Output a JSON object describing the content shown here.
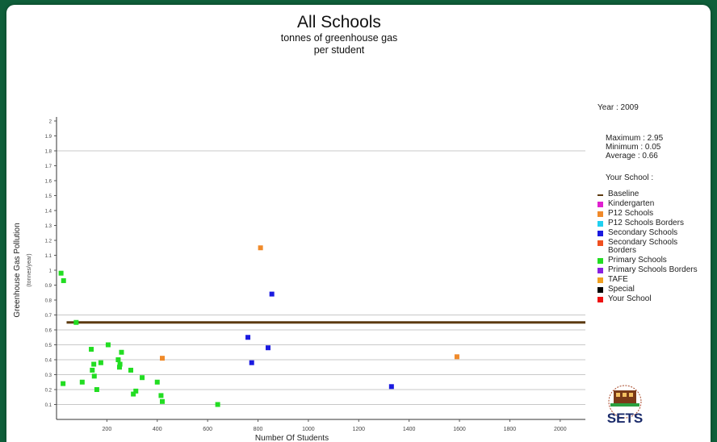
{
  "chart_data": {
    "type": "scatter",
    "title": "All Schools",
    "subtitle": [
      "tonnes of greenhouse gas",
      "per student"
    ],
    "xlabel": "Number Of Students",
    "ylabel": "Greenhouse Gas Pollution",
    "ylabel_unit": "(tonnes/year)",
    "xlim": [
      0,
      2100
    ],
    "ylim": [
      0,
      2
    ],
    "x_ticks": [
      {
        "v": 200,
        "label": "200"
      },
      {
        "v": 400,
        "label": "400"
      },
      {
        "v": 600,
        "label": "600"
      },
      {
        "v": 800,
        "label": "800"
      },
      {
        "v": 1000,
        "label": "1000"
      },
      {
        "v": 1200,
        "label": "1200"
      },
      {
        "v": 1400,
        "label": "1400"
      },
      {
        "v": 1600,
        "label": "1600"
      },
      {
        "v": 1800,
        "label": "1800"
      },
      {
        "v": 2000,
        "label": "2000"
      }
    ],
    "y_ticks": [
      {
        "v": 0.1,
        "label": "0.1"
      },
      {
        "v": 0.2,
        "label": "0.2"
      },
      {
        "v": 0.3,
        "label": "0.3"
      },
      {
        "v": 0.4,
        "label": "0.4"
      },
      {
        "v": 0.5,
        "label": "0.5"
      },
      {
        "v": 0.6,
        "label": "0.6"
      },
      {
        "v": 0.7,
        "label": "0.7"
      },
      {
        "v": 0.8,
        "label": "0.8"
      },
      {
        "v": 0.9,
        "label": "0.9"
      },
      {
        "v": 1.0,
        "label": "1"
      },
      {
        "v": 1.1,
        "label": "1.1"
      },
      {
        "v": 1.2,
        "label": "1.2"
      },
      {
        "v": 1.3,
        "label": "1.3"
      },
      {
        "v": 1.4,
        "label": "1.4"
      },
      {
        "v": 1.5,
        "label": "1.5"
      },
      {
        "v": 1.6,
        "label": "1.6"
      },
      {
        "v": 1.7,
        "label": "1.7"
      },
      {
        "v": 1.8,
        "label": "1.8"
      },
      {
        "v": 1.9,
        "label": "1.9"
      },
      {
        "v": 2.0,
        "label": "2"
      }
    ],
    "gridlines": [
      0.1,
      0.2,
      0.3,
      0.4,
      0.5,
      0.6,
      0.7,
      1.8
    ],
    "baseline": {
      "value": 0.65,
      "color": "#5c3a10"
    },
    "series": [
      {
        "name": "Primary Schools",
        "color": "#22dd22",
        "points": [
          [
            18,
            0.98
          ],
          [
            28,
            0.93
          ],
          [
            26,
            0.24
          ],
          [
            78,
            0.65
          ],
          [
            102,
            0.25
          ],
          [
            138,
            0.47
          ],
          [
            142,
            0.33
          ],
          [
            148,
            0.37
          ],
          [
            150,
            0.29
          ],
          [
            160,
            0.2
          ],
          [
            176,
            0.38
          ],
          [
            205,
            0.5
          ],
          [
            245,
            0.4
          ],
          [
            250,
            0.35
          ],
          [
            252,
            0.37
          ],
          [
            258,
            0.45
          ],
          [
            295,
            0.33
          ],
          [
            305,
            0.17
          ],
          [
            315,
            0.19
          ],
          [
            340,
            0.28
          ],
          [
            400,
            0.25
          ],
          [
            415,
            0.16
          ],
          [
            420,
            0.12
          ],
          [
            640,
            0.1
          ]
        ]
      },
      {
        "name": "P12 Schools",
        "color": "#f08a2a",
        "points": [
          [
            420,
            0.41
          ],
          [
            810,
            1.15
          ],
          [
            1590,
            0.42
          ]
        ]
      },
      {
        "name": "Secondary Schools",
        "color": "#1a1ae0",
        "points": [
          [
            760,
            0.55
          ],
          [
            775,
            0.38
          ],
          [
            840,
            0.48
          ],
          [
            855,
            0.84
          ],
          [
            1330,
            0.22
          ]
        ]
      }
    ]
  },
  "info": {
    "year": "Year : 2009",
    "maximum": "Maximum : 2.95",
    "minimum": "Minimum : 0.05",
    "average": "Average : 0.66",
    "your_school": "Your School :"
  },
  "legend": [
    {
      "label": "Baseline",
      "color": "#5c3a10",
      "kind": "line"
    },
    {
      "label": "Kindergarten",
      "color": "#e020d0",
      "kind": "box"
    },
    {
      "label": "P12 Schools",
      "color": "#f08a2a",
      "kind": "box"
    },
    {
      "label": "P12 Schools Borders",
      "color": "#20d0f0",
      "kind": "box"
    },
    {
      "label": "Secondary Schools",
      "color": "#1a1ae0",
      "kind": "box"
    },
    {
      "label": "Secondary Schools Borders",
      "color": "#f05020",
      "kind": "box"
    },
    {
      "label": "Primary Schools",
      "color": "#22dd22",
      "kind": "box"
    },
    {
      "label": "Primary Schools Borders",
      "color": "#8a20e0",
      "kind": "box"
    },
    {
      "label": "TAFE",
      "color": "#f0a020",
      "kind": "box"
    },
    {
      "label": "Special",
      "color": "#000000",
      "kind": "box"
    },
    {
      "label": "Your School",
      "color": "#ee1111",
      "kind": "box"
    }
  ],
  "logo": {
    "text": "SETS",
    "icon": "sets-logo-icon"
  }
}
